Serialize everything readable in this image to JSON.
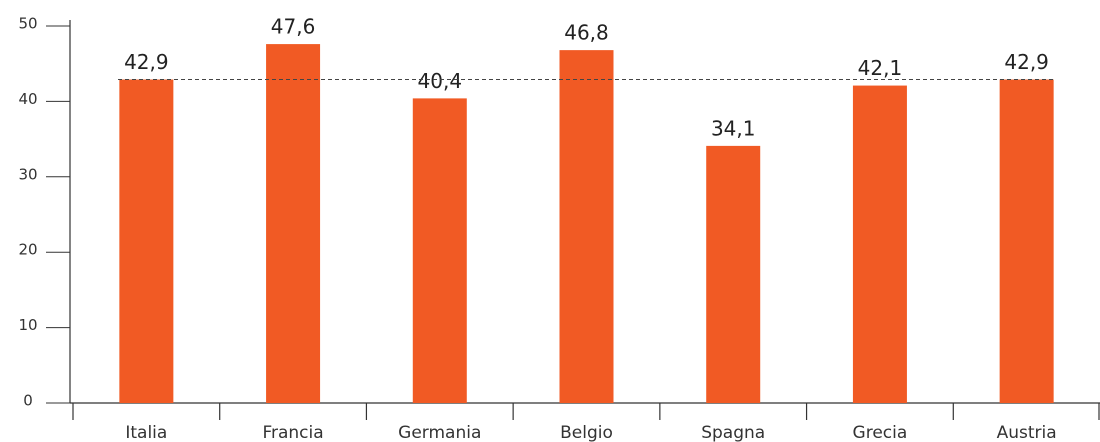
{
  "chart_data": {
    "type": "bar",
    "categories": [
      "Italia",
      "Francia",
      "Germania",
      "Belgio",
      "Spagna",
      "Grecia",
      "Austria"
    ],
    "values": [
      42.9,
      47.6,
      40.4,
      46.8,
      34.1,
      42.1,
      42.9
    ],
    "value_labels": [
      "42,9",
      "47,6",
      "40,4",
      "46,8",
      "34,1",
      "42,1",
      "42,9"
    ],
    "color": "#f15a24",
    "reference_line": 42.9,
    "ylim": [
      0,
      50
    ],
    "yticks": [
      0,
      10,
      20,
      30,
      40,
      50
    ]
  }
}
